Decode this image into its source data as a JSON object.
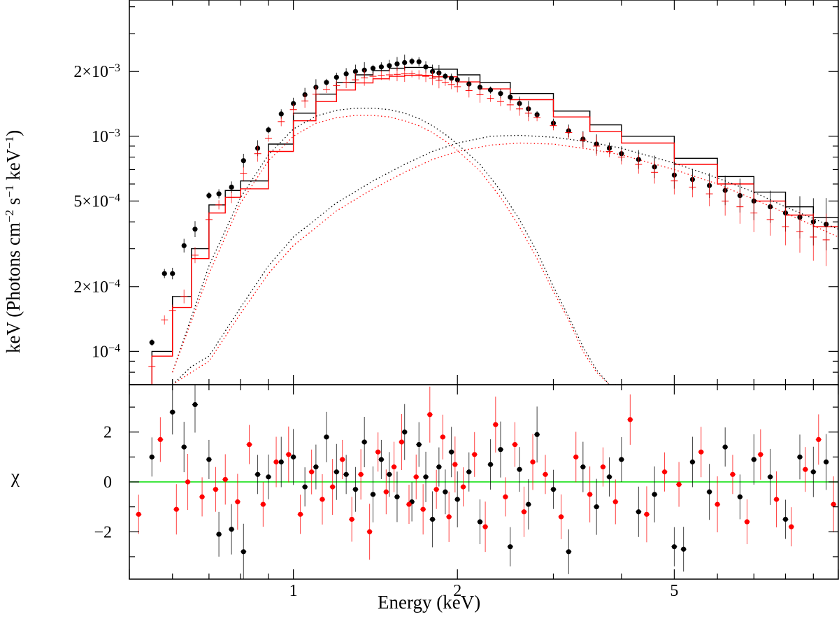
{
  "chart_data": [
    {
      "panel": "spectrum",
      "type": "scatter",
      "x_scale": "log",
      "y_scale": "log",
      "xlim": [
        0.5,
        10
      ],
      "ylim": [
        7e-05,
        0.0043
      ],
      "ylabel_main": "keV (Photons cm",
      "ylabel_sup1": "−2",
      "ylabel_mid1": " s",
      "ylabel_sup2": "−1",
      "ylabel_mid2": " keV",
      "ylabel_sup3": "−1",
      "ylabel_end": ")",
      "y_ticks": [
        {
          "value": 0.002,
          "mant": "2×10",
          "exp": "−3"
        },
        {
          "value": 0.001,
          "mant": "10",
          "exp": "−3"
        },
        {
          "value": 0.0005,
          "mant": "5×10",
          "exp": "−4"
        },
        {
          "value": 0.0002,
          "mant": "2×10",
          "exp": "−4"
        },
        {
          "value": 0.0001,
          "mant": "10",
          "exp": "−4"
        }
      ],
      "series": [
        {
          "name": "black data",
          "color": "#000000",
          "x": [
            0.55,
            0.58,
            0.6,
            0.63,
            0.66,
            0.7,
            0.73,
            0.77,
            0.81,
            0.86,
            0.9,
            0.95,
            1.0,
            1.05,
            1.1,
            1.15,
            1.2,
            1.25,
            1.3,
            1.35,
            1.4,
            1.45,
            1.5,
            1.55,
            1.6,
            1.65,
            1.7,
            1.75,
            1.8,
            1.85,
            1.9,
            1.95,
            2.0,
            2.1,
            2.2,
            2.3,
            2.4,
            2.5,
            2.6,
            2.7,
            2.8,
            3.0,
            3.2,
            3.4,
            3.6,
            3.8,
            4.0,
            4.3,
            4.6,
            5.0,
            5.4,
            5.8,
            6.2,
            6.6,
            7.0,
            7.5,
            8.0,
            8.5,
            9.0,
            9.5
          ],
          "y": [
            0.00011,
            0.00023,
            0.00023,
            0.00031,
            0.00037,
            0.00053,
            0.00054,
            0.00058,
            0.00077,
            0.00088,
            0.00107,
            0.00127,
            0.00142,
            0.00156,
            0.00169,
            0.00178,
            0.00188,
            0.00195,
            0.002,
            0.00203,
            0.00207,
            0.0021,
            0.00213,
            0.00217,
            0.0022,
            0.00223,
            0.00222,
            0.0021,
            0.002,
            0.00197,
            0.0019,
            0.00186,
            0.00183,
            0.00175,
            0.00169,
            0.00164,
            0.00158,
            0.00152,
            0.00142,
            0.00134,
            0.00126,
            0.00115,
            0.00106,
            0.00097,
            0.00092,
            0.00088,
            0.00083,
            0.00078,
            0.00072,
            0.00066,
            0.00063,
            0.00059,
            0.00056,
            0.00053,
            0.0005,
            0.00047,
            0.00044,
            0.00042,
            0.0004,
            0.00039
          ]
        },
        {
          "name": "red data",
          "color": "#ff0000",
          "x": [
            0.55,
            0.58,
            0.6,
            0.63,
            0.66,
            0.7,
            0.73,
            0.77,
            0.81,
            0.86,
            0.9,
            0.95,
            1.0,
            1.05,
            1.1,
            1.15,
            1.2,
            1.25,
            1.3,
            1.35,
            1.4,
            1.45,
            1.5,
            1.55,
            1.6,
            1.65,
            1.7,
            1.75,
            1.8,
            1.85,
            1.9,
            1.95,
            2.0,
            2.1,
            2.2,
            2.3,
            2.4,
            2.5,
            2.6,
            2.7,
            2.8,
            3.0,
            3.2,
            3.4,
            3.6,
            3.8,
            4.0,
            4.3,
            4.6,
            5.0,
            5.4,
            5.8,
            6.2,
            6.6,
            7.0,
            7.5,
            8.0,
            8.5,
            9.0,
            9.5
          ],
          "y": [
            8.5e-05,
            0.00014,
            0.000155,
            0.00018,
            0.00028,
            0.00041,
            0.00048,
            0.00052,
            0.00067,
            0.00083,
            0.00098,
            0.00117,
            0.00133,
            0.00146,
            0.00157,
            0.00165,
            0.00172,
            0.00178,
            0.00183,
            0.00187,
            0.0019,
            0.00192,
            0.00193,
            0.00194,
            0.00195,
            0.00195,
            0.00193,
            0.0019,
            0.00186,
            0.00182,
            0.00178,
            0.00174,
            0.0017,
            0.00163,
            0.00156,
            0.0015,
            0.00145,
            0.0014,
            0.00134,
            0.00128,
            0.00122,
            0.00112,
            0.00104,
            0.00096,
            0.0009,
            0.00085,
            0.0008,
            0.00074,
            0.00068,
            0.00062,
            0.00058,
            0.00054,
            0.0005,
            0.00047,
            0.00044,
            0.00041,
            0.00038,
            0.00036,
            0.00034,
            0.00033
          ]
        }
      ],
      "model_lines": [
        {
          "name": "black total model",
          "color": "#000000",
          "x": [
            0.5,
            0.55,
            0.6,
            0.65,
            0.7,
            0.75,
            0.8,
            0.9,
            1.0,
            1.1,
            1.2,
            1.3,
            1.4,
            1.5,
            1.6,
            1.7,
            1.8,
            2.0,
            2.2,
            2.5,
            3.0,
            3.5,
            4.0,
            5.0,
            6.0,
            7.0,
            8.0,
            9.0,
            10.0
          ],
          "y": [
            7e-05,
            0.0001,
            0.00018,
            0.0003,
            0.00048,
            0.00056,
            0.00062,
            0.00092,
            0.00128,
            0.00157,
            0.00178,
            0.00193,
            0.00202,
            0.00207,
            0.00209,
            0.00209,
            0.00205,
            0.00193,
            0.00178,
            0.00158,
            0.00131,
            0.00113,
            0.001,
            0.00079,
            0.00065,
            0.00055,
            0.00047,
            0.00042,
            0.00037
          ]
        },
        {
          "name": "red total model",
          "color": "#ff0000",
          "x": [
            0.5,
            0.55,
            0.6,
            0.65,
            0.7,
            0.75,
            0.8,
            0.9,
            1.0,
            1.1,
            1.2,
            1.3,
            1.4,
            1.5,
            1.6,
            1.7,
            1.8,
            2.0,
            2.2,
            2.5,
            3.0,
            3.5,
            4.0,
            5.0,
            6.0,
            7.0,
            8.0,
            9.0,
            10.0
          ],
          "y": [
            7e-05,
            9.5e-05,
            0.00016,
            0.00027,
            0.00044,
            0.00052,
            0.00057,
            0.00085,
            0.00118,
            0.00145,
            0.00164,
            0.00177,
            0.00185,
            0.0019,
            0.00192,
            0.00192,
            0.00189,
            0.00179,
            0.00166,
            0.00148,
            0.00123,
            0.00105,
            0.00093,
            0.00074,
            0.0006,
            0.0005,
            0.00043,
            0.00038,
            0.00034
          ]
        },
        {
          "name": "black soft component",
          "color": "#000000",
          "dotted": true,
          "x": [
            0.6,
            0.7,
            0.8,
            0.9,
            1.0,
            1.1,
            1.2,
            1.3,
            1.4,
            1.5,
            1.6,
            1.7,
            1.8,
            1.9,
            2.0,
            2.2,
            2.4,
            2.6,
            2.8,
            3.0,
            3.2,
            3.4,
            3.6,
            3.8,
            4.0
          ],
          "y": [
            8e-05,
            0.00025,
            0.00052,
            0.00082,
            0.00108,
            0.00124,
            0.00132,
            0.00135,
            0.00135,
            0.00133,
            0.00128,
            0.00121,
            0.00112,
            0.00102,
            0.00092,
            0.00074,
            0.00056,
            0.00041,
            0.00029,
            0.0002,
            0.000145,
            0.000105,
            8.2e-05,
            7e-05,
            7e-05
          ]
        },
        {
          "name": "red soft component",
          "color": "#ff0000",
          "dotted": true,
          "x": [
            0.6,
            0.7,
            0.8,
            0.9,
            1.0,
            1.1,
            1.2,
            1.3,
            1.4,
            1.5,
            1.6,
            1.7,
            1.8,
            1.9,
            2.0,
            2.2,
            2.4,
            2.6,
            2.8,
            3.0,
            3.2,
            3.4,
            3.6,
            3.8,
            4.0
          ],
          "y": [
            8e-05,
            0.00023,
            0.00049,
            0.00077,
            0.001,
            0.00115,
            0.00122,
            0.00125,
            0.00125,
            0.00123,
            0.00118,
            0.00112,
            0.00104,
            0.00095,
            0.00086,
            0.00069,
            0.00052,
            0.00038,
            0.00027,
            0.00019,
            0.00014,
            0.0001,
            8e-05,
            7e-05,
            7e-05
          ]
        },
        {
          "name": "black hard component",
          "color": "#000000",
          "dotted": true,
          "x": [
            0.6,
            0.65,
            0.7,
            0.8,
            0.9,
            1.0,
            1.2,
            1.4,
            1.6,
            1.8,
            2.0,
            2.3,
            2.6,
            3.0,
            3.5,
            4.0,
            5.0,
            6.0,
            7.0,
            8.0,
            10.0
          ],
          "y": [
            7e-05,
            8.5e-05,
            9.5e-05,
            0.00016,
            0.00025,
            0.00034,
            0.00049,
            0.00062,
            0.00074,
            0.00085,
            0.00093,
            0.001,
            0.00101,
            0.00099,
            0.00094,
            0.00088,
            0.00075,
            0.00064,
            0.00055,
            0.00047,
            0.00037
          ]
        },
        {
          "name": "red hard component",
          "color": "#ff0000",
          "dotted": true,
          "x": [
            0.6,
            0.65,
            0.7,
            0.8,
            0.9,
            1.0,
            1.2,
            1.4,
            1.6,
            1.8,
            2.0,
            2.3,
            2.6,
            3.0,
            3.5,
            4.0,
            5.0,
            6.0,
            7.0,
            8.0,
            10.0
          ],
          "y": [
            7e-05,
            8e-05,
            9e-05,
            0.00015,
            0.00023,
            0.00031,
            0.00045,
            0.00057,
            0.00068,
            0.00078,
            0.00085,
            0.00091,
            0.00093,
            0.00092,
            0.00087,
            0.00082,
            0.0007,
            0.0006,
            0.00051,
            0.00044,
            0.00034
          ]
        }
      ]
    },
    {
      "panel": "residuals",
      "type": "scatter",
      "x_scale": "log",
      "xlim": [
        0.5,
        10
      ],
      "ylim": [
        -3.9,
        3.9
      ],
      "xlabel": "Energy (keV)",
      "ylabel": "χ",
      "x_ticks": [
        {
          "value": 1,
          "label": "1"
        },
        {
          "value": 2,
          "label": "2"
        },
        {
          "value": 5,
          "label": "5"
        }
      ],
      "y_ticks": [
        {
          "value": 2,
          "label": "2"
        },
        {
          "value": 0,
          "label": "0"
        },
        {
          "value": -2,
          "label": "−2"
        }
      ],
      "zero_line_color": "#00dd00",
      "series": [
        {
          "name": "black residuals",
          "color": "#000000",
          "x": [
            0.55,
            0.6,
            0.63,
            0.66,
            0.7,
            0.73,
            0.77,
            0.81,
            0.86,
            0.9,
            0.95,
            1.0,
            1.05,
            1.1,
            1.15,
            1.2,
            1.25,
            1.3,
            1.35,
            1.4,
            1.45,
            1.5,
            1.55,
            1.6,
            1.65,
            1.7,
            1.75,
            1.8,
            1.85,
            1.9,
            1.95,
            2.0,
            2.1,
            2.2,
            2.3,
            2.4,
            2.5,
            2.6,
            2.7,
            2.8,
            3.0,
            3.2,
            3.4,
            3.6,
            3.8,
            4.0,
            4.3,
            4.6,
            5.0,
            5.2,
            5.4,
            5.8,
            6.2,
            6.6,
            7.0,
            7.5,
            8.0,
            8.5,
            9.0,
            9.5
          ],
          "y": [
            1.0,
            2.8,
            1.4,
            3.1,
            0.9,
            -2.1,
            -1.9,
            -2.8,
            0.3,
            0.2,
            0.8,
            1.0,
            -0.2,
            0.6,
            1.8,
            0.4,
            0.3,
            -0.3,
            1.6,
            -0.5,
            0.9,
            0.3,
            -0.6,
            2.0,
            -0.8,
            1.5,
            0.2,
            -1.5,
            0.6,
            -0.4,
            1.2,
            -0.7,
            0.4,
            -1.6,
            0.7,
            1.3,
            -2.6,
            0.5,
            -0.9,
            1.9,
            -0.3,
            -2.8,
            0.6,
            -1.0,
            0.2,
            0.9,
            -1.2,
            -0.5,
            -2.6,
            -2.7,
            0.8,
            -0.4,
            1.4,
            -0.6,
            0.9,
            0.2,
            -1.5,
            1.0,
            0.4,
            0.8
          ]
        },
        {
          "name": "red residuals",
          "color": "#ff0000",
          "x": [
            0.52,
            0.57,
            0.61,
            0.64,
            0.68,
            0.72,
            0.75,
            0.79,
            0.83,
            0.88,
            0.93,
            0.98,
            1.03,
            1.08,
            1.13,
            1.18,
            1.23,
            1.28,
            1.33,
            1.38,
            1.43,
            1.48,
            1.53,
            1.58,
            1.63,
            1.68,
            1.73,
            1.78,
            1.83,
            1.88,
            1.93,
            1.98,
            2.05,
            2.15,
            2.25,
            2.35,
            2.45,
            2.55,
            2.65,
            2.75,
            2.9,
            3.1,
            3.3,
            3.5,
            3.7,
            3.9,
            4.15,
            4.45,
            4.8,
            5.1,
            5.6,
            6.0,
            6.4,
            6.8,
            7.2,
            7.7,
            8.2,
            8.7,
            9.2,
            9.8
          ],
          "y": [
            -1.3,
            1.7,
            -1.1,
            0.0,
            -0.6,
            -0.3,
            0.1,
            -0.8,
            1.5,
            -0.9,
            0.8,
            1.1,
            -1.3,
            0.4,
            -0.7,
            -0.2,
            0.9,
            -1.5,
            0.3,
            -2.0,
            1.2,
            -0.4,
            0.6,
            1.6,
            -0.9,
            0.2,
            -1.1,
            2.7,
            -0.3,
            1.8,
            -1.4,
            0.7,
            -0.2,
            1.1,
            -1.8,
            2.3,
            -0.6,
            1.5,
            -1.2,
            0.8,
            0.3,
            -1.4,
            1.0,
            -0.5,
            0.6,
            -0.8,
            2.5,
            -1.3,
            0.4,
            -0.1,
            1.2,
            -0.9,
            0.3,
            -1.6,
            1.1,
            -0.7,
            -1.8,
            0.5,
            1.7,
            -0.9
          ]
        }
      ]
    }
  ]
}
